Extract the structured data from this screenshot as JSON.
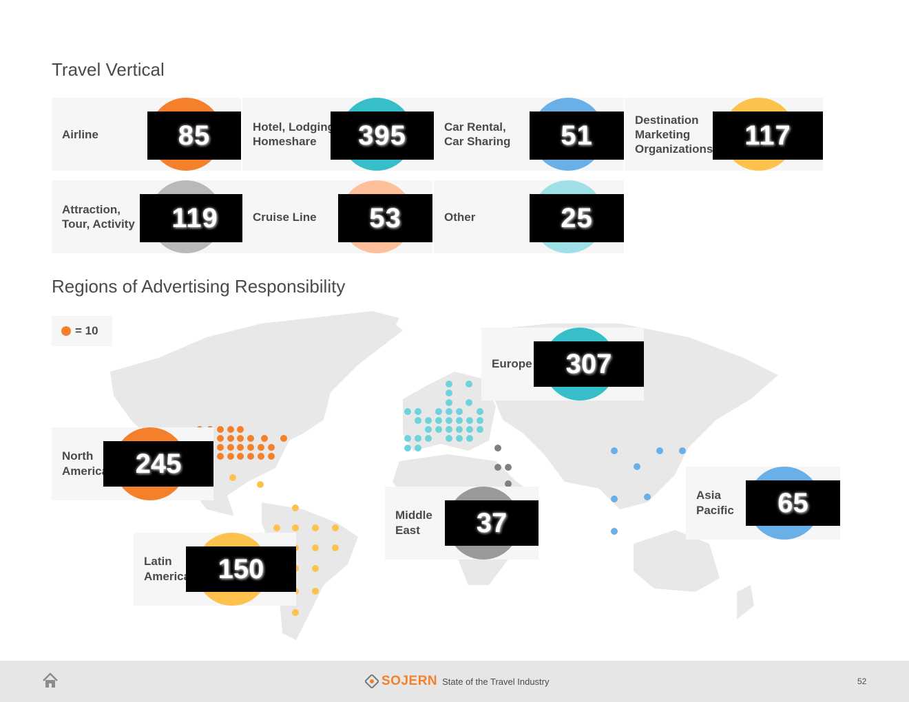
{
  "titles": {
    "travel_vertical": "Travel Vertical",
    "regions": "Regions of Advertising Responsibility"
  },
  "verticals": [
    {
      "label": "Airline",
      "value": "85",
      "color": "#f5802b"
    },
    {
      "label": "Hotel, Lodging,\nHomeshare",
      "value": "395",
      "color": "#37bfc9"
    },
    {
      "label": "Car Rental,\nCar Sharing",
      "value": "51",
      "color": "#6ab0e8"
    },
    {
      "label": "Destination\nMarketing\nOrganizations",
      "value": "117",
      "color": "#fdc24e"
    },
    {
      "label": "Attraction,\nTour, Activity",
      "value": "119",
      "color": "#b9b9b9"
    },
    {
      "label": "Cruise Line",
      "value": "53",
      "color": "#fdc09a"
    },
    {
      "label": "Other",
      "value": "25",
      "color": "#9fdfe6"
    }
  ],
  "legend": {
    "text": "= 10",
    "color": "#f5802b"
  },
  "regions": [
    {
      "label": "Europe",
      "value": "307",
      "color": "#37bfc9"
    },
    {
      "label": "North\nAmerica",
      "value": "245",
      "color": "#f5802b"
    },
    {
      "label": "Middle\nEast",
      "value": "37",
      "color": "#999999"
    },
    {
      "label": "Asia\nPacific",
      "value": "65",
      "color": "#6ab0e8"
    },
    {
      "label": "Latin\nAmerica",
      "value": "150",
      "color": "#fdc24e"
    }
  ],
  "footer": {
    "brand": "SOJERN",
    "subtitle": "State of the Travel Industry",
    "page": "52",
    "brand_color": "#f5802b"
  }
}
